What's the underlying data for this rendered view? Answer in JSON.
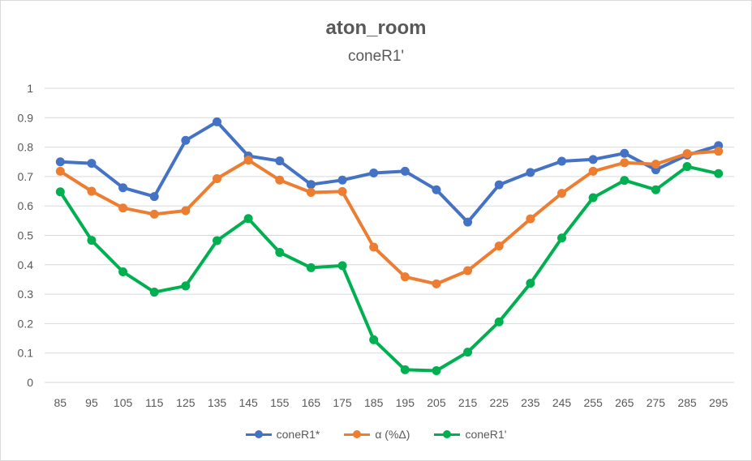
{
  "chart_data": {
    "type": "line",
    "title": "aton_room",
    "subtitle": "coneR1'",
    "xlabel": "",
    "ylabel": "",
    "ylim": [
      0,
      1
    ],
    "yticks": [
      "0",
      "0.1",
      "0.2",
      "0.3",
      "0.4",
      "0.5",
      "0.6",
      "0.7",
      "0.8",
      "0.9",
      "1"
    ],
    "grid": true,
    "legend_position": "bottom",
    "categories": [
      "85",
      "95",
      "105",
      "115",
      "125",
      "135",
      "145",
      "155",
      "165",
      "175",
      "185",
      "195",
      "205",
      "215",
      "225",
      "235",
      "245",
      "255",
      "265",
      "275",
      "285",
      "295"
    ],
    "series": [
      {
        "name": "coneR1*",
        "color": "#4472c4",
        "values": [
          0.75,
          0.745,
          0.662,
          0.632,
          0.823,
          0.886,
          0.77,
          0.753,
          0.673,
          0.688,
          0.712,
          0.718,
          0.655,
          0.545,
          0.672,
          0.714,
          0.752,
          0.758,
          0.779,
          0.723,
          0.773,
          0.805
        ]
      },
      {
        "name": "α (%Δ)",
        "color": "#ed7d31",
        "values": [
          0.718,
          0.65,
          0.593,
          0.572,
          0.584,
          0.693,
          0.756,
          0.688,
          0.646,
          0.649,
          0.46,
          0.359,
          0.335,
          0.38,
          0.464,
          0.556,
          0.643,
          0.718,
          0.747,
          0.742,
          0.778,
          0.786
        ]
      },
      {
        "name": "coneR1'",
        "color": "#00b050",
        "values": [
          0.648,
          0.483,
          0.376,
          0.307,
          0.328,
          0.482,
          0.557,
          0.442,
          0.39,
          0.397,
          0.145,
          0.043,
          0.04,
          0.103,
          0.206,
          0.337,
          0.491,
          0.628,
          0.687,
          0.655,
          0.734,
          0.71
        ]
      }
    ]
  }
}
